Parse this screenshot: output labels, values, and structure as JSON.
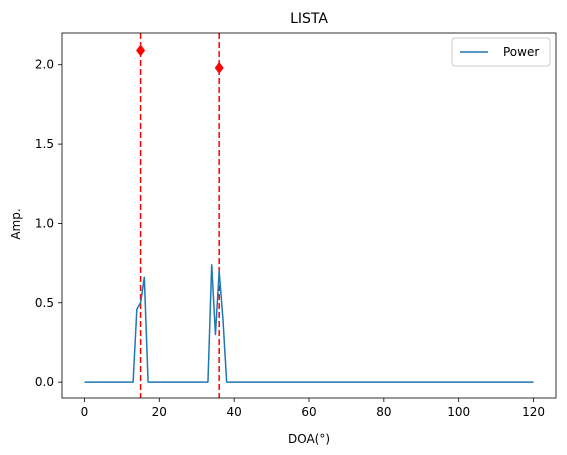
{
  "chart_data": {
    "type": "line",
    "title": "LISTA",
    "xlabel": "DOA(°)",
    "ylabel": "Amp.",
    "xlim": [
      -6,
      126
    ],
    "ylim": [
      -0.1,
      2.2
    ],
    "xticks": [
      0,
      20,
      40,
      60,
      80,
      100,
      120
    ],
    "yticks": [
      0.0,
      0.5,
      1.0,
      1.5,
      2.0
    ],
    "xtick_labels": [
      "0",
      "20",
      "40",
      "60",
      "80",
      "100",
      "120"
    ],
    "ytick_labels": [
      "0.0",
      "0.5",
      "1.0",
      "1.5",
      "2.0"
    ],
    "grid": false,
    "legend_position": "top-right",
    "series": [
      {
        "name": "Power",
        "color": "#1f77b4",
        "x": [
          0,
          13,
          14,
          15,
          16,
          17,
          33,
          34,
          35,
          36,
          37,
          38,
          120
        ],
        "y": [
          0,
          0,
          0.46,
          0.5,
          0.66,
          0,
          0,
          0.74,
          0.3,
          0.7,
          0.4,
          0,
          0
        ]
      }
    ],
    "reference_lines": {
      "color": "#ff0000",
      "x": [
        15,
        36
      ]
    },
    "markers": {
      "color": "#ff0000",
      "shape": "diamond",
      "points": [
        {
          "x": 15,
          "y": 2.09
        },
        {
          "x": 36,
          "y": 1.98
        }
      ]
    }
  }
}
